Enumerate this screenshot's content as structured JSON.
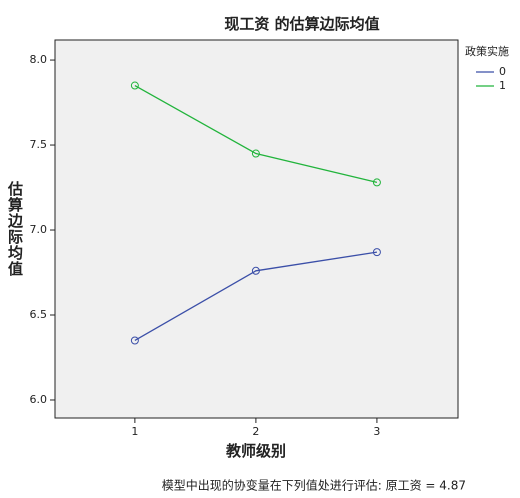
{
  "chart_data": {
    "type": "line",
    "title": "现工资 的估算边际均值",
    "x_label": "教师级别",
    "y_label": "估算边际均值",
    "legend_title": "政策实施",
    "footnote": "模型中出现的协变量在下列值处进行评估: 原工资 = 4.87",
    "x": [
      1,
      2,
      3
    ],
    "xlim": [
      0.34,
      3.67
    ],
    "xticks": [
      1,
      2,
      3
    ],
    "ylim": [
      5.894,
      8.118
    ],
    "yticks": [
      {
        "value": 6,
        "label": "6.0"
      },
      {
        "value": 6.5,
        "label": "6.5"
      },
      {
        "value": 7,
        "label": "7.0"
      },
      {
        "value": 7.5,
        "label": "7.5"
      },
      {
        "value": 8,
        "label": "8.0"
      }
    ],
    "series": [
      {
        "name": "0",
        "color": "#3b4fa8",
        "values": [
          6.35,
          6.76,
          6.87
        ]
      },
      {
        "name": "1",
        "color": "#22b43c",
        "values": [
          7.85,
          7.45,
          7.28
        ]
      }
    ]
  }
}
